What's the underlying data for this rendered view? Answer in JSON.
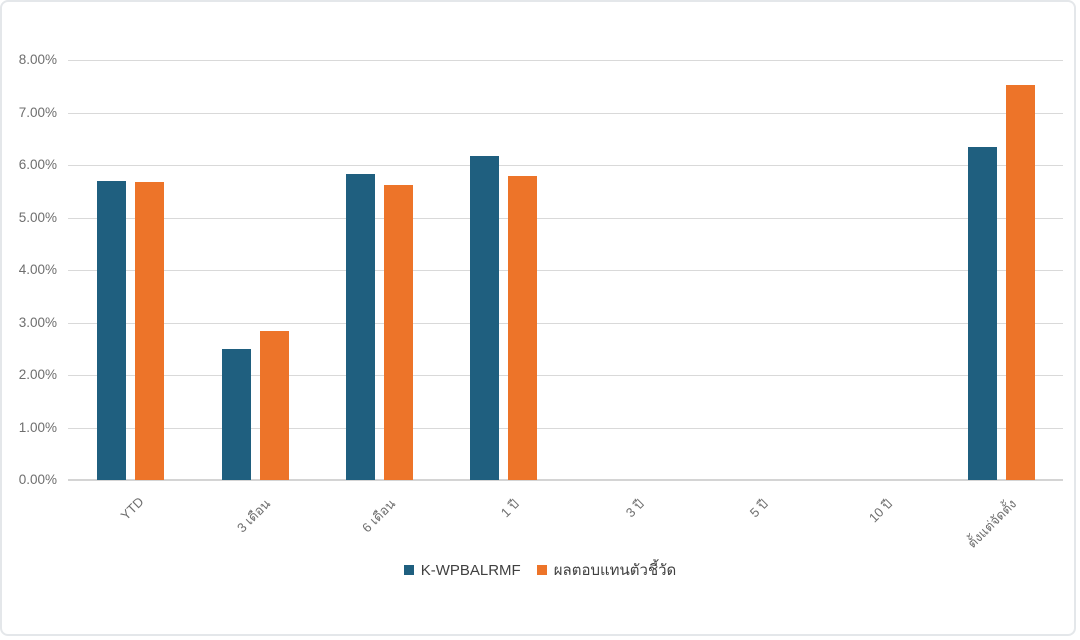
{
  "chart_data": {
    "type": "bar",
    "title": "",
    "categories": [
      "YTD",
      "3 เดือน",
      "6 เดือน",
      "1 ปี",
      "3 ปี",
      "5 ปี",
      "10 ปี",
      "ตั้งแต่จัดตั้ง"
    ],
    "series": [
      {
        "name": "K-WPBALRMF",
        "color": "#1F5F7F",
        "values": [
          5.7,
          2.5,
          5.82,
          6.17,
          null,
          null,
          null,
          6.35
        ]
      },
      {
        "name": "ผลตอบแทนตัวชี้วัด",
        "color": "#ED7429",
        "values": [
          5.68,
          2.83,
          5.62,
          5.79,
          null,
          null,
          null,
          7.52
        ]
      }
    ],
    "ylim": [
      0,
      8
    ],
    "yticks": [
      {
        "value": 0,
        "label": "0.00%"
      },
      {
        "value": 1,
        "label": "1.00%"
      },
      {
        "value": 2,
        "label": "2.00%"
      },
      {
        "value": 3,
        "label": "3.00%"
      },
      {
        "value": 4,
        "label": "4.00%"
      },
      {
        "value": 5,
        "label": "5.00%"
      },
      {
        "value": 6,
        "label": "6.00%"
      },
      {
        "value": 7,
        "label": "7.00%"
      },
      {
        "value": 8,
        "label": "8.00%"
      }
    ],
    "grid": true,
    "legend_position": "bottom",
    "xlabel": "",
    "ylabel": "",
    "colors": {
      "grid": "#D9D9D9",
      "axis_line": "#D4D4D4",
      "tick_text": "#6E6E6E",
      "legend_text": "#404040",
      "background": "#FFFFFF",
      "frame_border": "#E4E7EA"
    }
  }
}
